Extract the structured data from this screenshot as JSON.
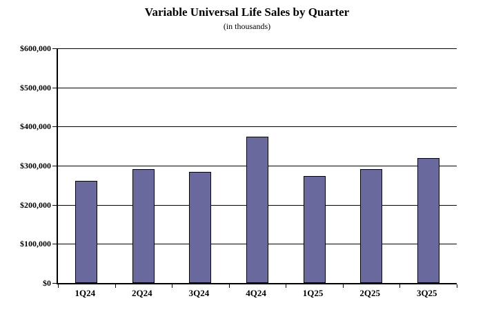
{
  "chart_data": {
    "type": "bar",
    "title": "Variable Universal Life Sales by Quarter",
    "subtitle": "(in thousands)",
    "categories": [
      "1Q24",
      "2Q24",
      "3Q24",
      "4Q24",
      "1Q25",
      "2Q25",
      "3Q25"
    ],
    "values": [
      262000,
      291000,
      285000,
      374000,
      274000,
      291000,
      319000
    ],
    "xlabel": "",
    "ylabel": "",
    "ylim": [
      0,
      600000
    ],
    "ytick_step": 100000,
    "ytick_labels": [
      "$600,000",
      "$500,000",
      "$400,000",
      "$300,000",
      "$200,000",
      "$100,000",
      "$0"
    ],
    "grid": true,
    "legend": false,
    "bar_color": "#6A699E",
    "bar_border_color": "#000000",
    "gridline_color": "#000000",
    "background_color": "#FFFFFF"
  }
}
